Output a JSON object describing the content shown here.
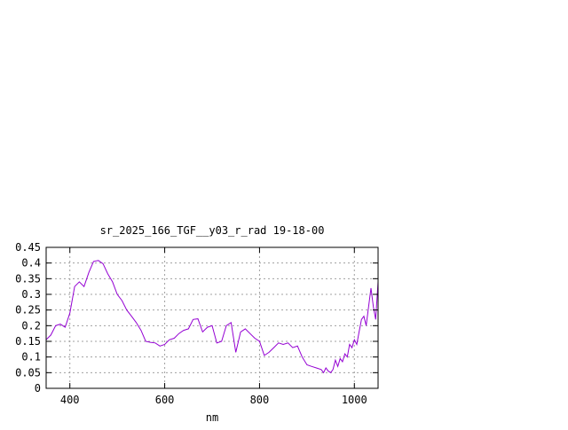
{
  "chart_data": {
    "type": "line",
    "title": "sr_2025_166_TGF__y03_r_rad 19-18-00",
    "xlabel": "nm",
    "ylabel": "",
    "xlim": [
      350,
      1050
    ],
    "ylim": [
      0,
      0.45
    ],
    "grid": true,
    "x_ticks": [
      400,
      600,
      800,
      1000
    ],
    "x_tick_labels": [
      "400",
      "600",
      "800",
      "1000"
    ],
    "y_ticks": [
      0,
      0.05,
      0.1,
      0.15,
      0.2,
      0.25,
      0.3,
      0.35,
      0.4,
      0.45
    ],
    "y_tick_labels": [
      "0",
      "0.05",
      "0.1",
      "0.15",
      "0.2",
      "0.25",
      "0.3",
      "0.35",
      "0.4",
      "0.45"
    ],
    "colors": {
      "series": "#9400d3"
    },
    "series": [
      {
        "x": [
          350,
          360,
          370,
          380,
          390,
          400,
          410,
          420,
          430,
          440,
          450,
          460,
          470,
          480,
          490,
          500,
          510,
          520,
          530,
          540,
          550,
          560,
          570,
          580,
          590,
          600,
          610,
          620,
          630,
          640,
          650,
          660,
          670,
          680,
          690,
          700,
          710,
          720,
          730,
          740,
          750,
          760,
          770,
          780,
          790,
          800,
          810,
          820,
          830,
          840,
          850,
          860,
          870,
          880,
          890,
          900,
          910,
          920,
          930,
          935,
          940,
          945,
          950,
          955,
          960,
          965,
          970,
          975,
          980,
          985,
          990,
          995,
          1000,
          1005,
          1010,
          1015,
          1020,
          1025,
          1030,
          1035,
          1040,
          1045,
          1050
        ],
        "values": [
          0.155,
          0.17,
          0.2,
          0.205,
          0.195,
          0.24,
          0.325,
          0.34,
          0.325,
          0.37,
          0.405,
          0.408,
          0.398,
          0.365,
          0.34,
          0.3,
          0.28,
          0.25,
          0.23,
          0.21,
          0.185,
          0.15,
          0.147,
          0.145,
          0.135,
          0.14,
          0.155,
          0.16,
          0.175,
          0.185,
          0.19,
          0.22,
          0.222,
          0.18,
          0.195,
          0.2,
          0.145,
          0.15,
          0.2,
          0.21,
          0.115,
          0.18,
          0.19,
          0.175,
          0.16,
          0.15,
          0.105,
          0.115,
          0.13,
          0.145,
          0.14,
          0.145,
          0.13,
          0.135,
          0.1,
          0.075,
          0.07,
          0.065,
          0.06,
          0.05,
          0.065,
          0.055,
          0.05,
          0.06,
          0.09,
          0.07,
          0.095,
          0.085,
          0.11,
          0.1,
          0.14,
          0.13,
          0.155,
          0.14,
          0.18,
          0.22,
          0.23,
          0.2,
          0.26,
          0.32,
          0.26,
          0.22,
          0.34
        ]
      }
    ]
  }
}
